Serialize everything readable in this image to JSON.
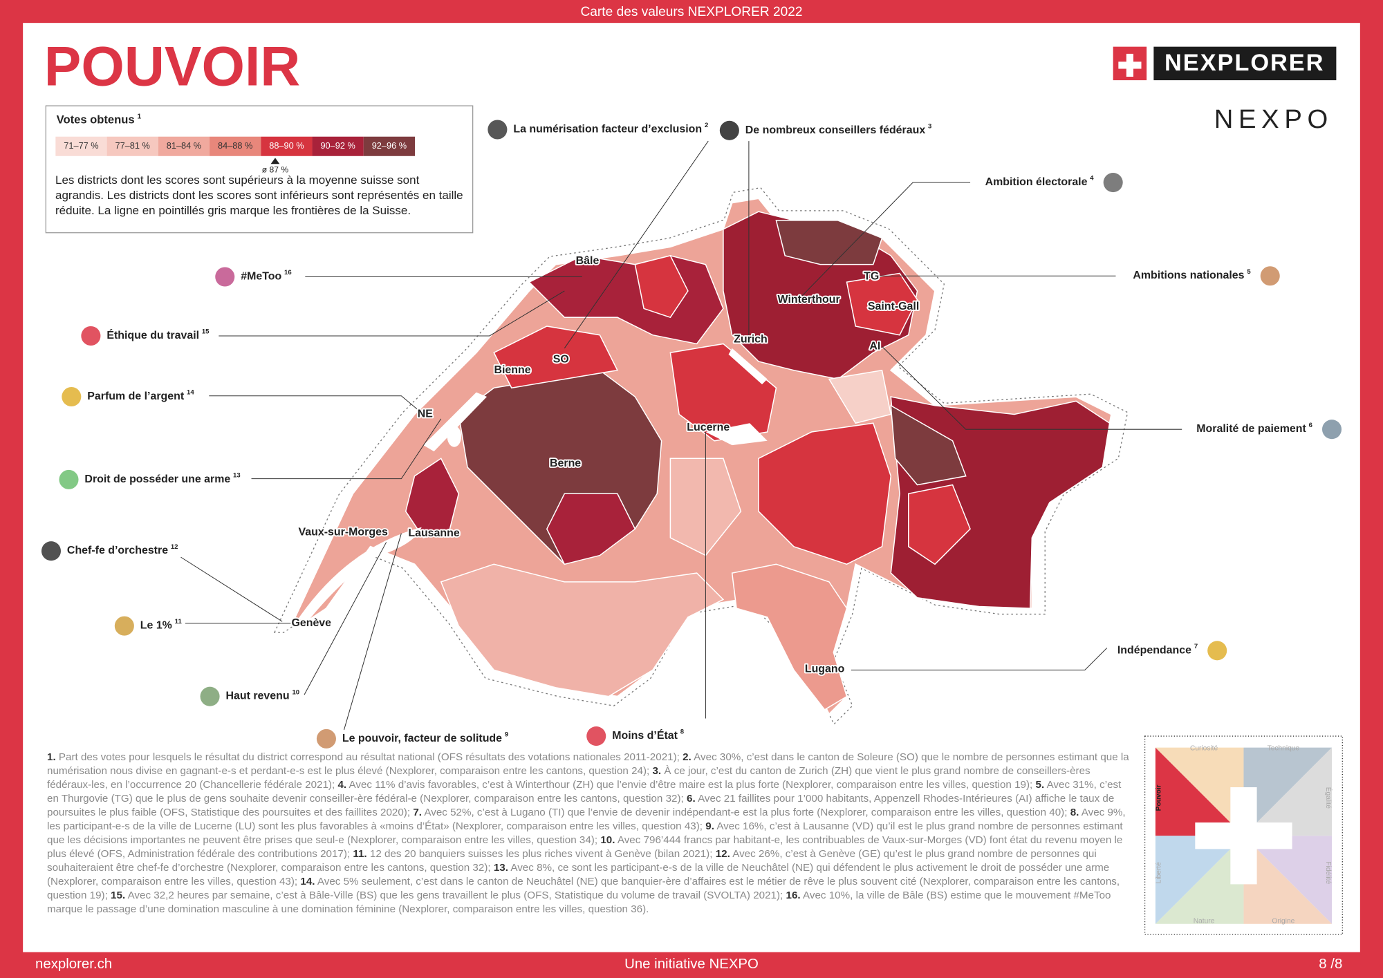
{
  "header": {
    "bar_title": "Carte des valeurs NEXPLORER 2022",
    "title": "POUVOIR",
    "brand": "NEXPLORER",
    "brand_secondary": "NEXPO"
  },
  "legend": {
    "title": "Votes obtenus",
    "title_note": "1",
    "bins": [
      {
        "label": "71–77 %",
        "color": "#f9dcd6"
      },
      {
        "label": "77–81 %",
        "color": "#f6c8bf"
      },
      {
        "label": "81–84 %",
        "color": "#f0a99e"
      },
      {
        "label": "84–88 %",
        "color": "#e8877b"
      },
      {
        "label": "88–90 %",
        "color": "#d6343f"
      },
      {
        "label": "90–92 %",
        "color": "#a8223a"
      },
      {
        "label": "92–96 %",
        "color": "#7d3b3e"
      }
    ],
    "average": "ø 87 %",
    "description": "Les districts dont les scores sont supérieurs à la moyenne suisse sont agrandis. Les districts dont les scores sont inférieurs sont représentés en taille réduite. La ligne en pointillés gris marque les frontières de la Suisse."
  },
  "callouts": [
    {
      "label": "La numérisation facteur d’exclusion",
      "note": "2"
    },
    {
      "label": "De nombreux conseillers fédéraux",
      "note": "3"
    },
    {
      "label": "Ambition électorale",
      "note": "4"
    },
    {
      "label": "Ambitions nationales",
      "note": "5"
    },
    {
      "label": "Moralité de paiement",
      "note": "6"
    },
    {
      "label": "Indépendance",
      "note": "7"
    },
    {
      "label": "Moins d’État",
      "note": "8"
    },
    {
      "label": "Le pouvoir, facteur de solitude",
      "note": "9"
    },
    {
      "label": "Haut revenu",
      "note": "10"
    },
    {
      "label": "Le 1%",
      "note": "11"
    },
    {
      "label": "Chef-fe d’orchestre",
      "note": "12"
    },
    {
      "label": "Droit de posséder une arme",
      "note": "13"
    },
    {
      "label": "Parfum de l’argent",
      "note": "14"
    },
    {
      "label": "Éthique du travail",
      "note": "15"
    },
    {
      "label": "#MeToo",
      "note": "16"
    }
  ],
  "places": [
    "Bâle",
    "SO",
    "Bienne",
    "NE",
    "Berne",
    "Lucerne",
    "Zurich",
    "Winterthour",
    "TG",
    "Saint-Gall",
    "AI",
    "Vaux-sur-Morges",
    "Lausanne",
    "Genève",
    "Lugano"
  ],
  "footnotes": [
    {
      "number": "1.",
      "text": "Part des votes pour lesquels le résultat du district correspond au résultat national (OFS résultats des votations nationales 2011-2021);"
    },
    {
      "number": "2.",
      "text": "Avec 30%, c’est dans le canton de Soleure (SO) que le nombre de personnes estimant que la numérisation nous divise en gagnant-e-s et perdant-e-s est le plus élevé (Nexplorer, comparaison entre les cantons, question 24);"
    },
    {
      "number": "3.",
      "text": "À ce jour, c’est du canton de Zurich (ZH) que vient le plus grand nombre de conseillers-ères fédéraux-les, en l’occurrence 20 (Chancellerie fédérale 2021);"
    },
    {
      "number": "4.",
      "text": "Avec 11% d’avis favorables, c’est à Winterthour (ZH) que l’envie d’être maire est la plus forte (Nexplorer, comparaison entre les villes, question 19);"
    },
    {
      "number": "5.",
      "text": "Avec 31%, c’est en Thurgovie (TG) que le plus de gens souhaite devenir conseiller-ère fédéral-e (Nexplorer, comparaison entre les cantons, question 32);"
    },
    {
      "number": "6.",
      "text": "Avec 21 faillites pour 1’000 habitants, Appenzell Rhodes-Intérieures (AI) affiche le taux de poursuites le plus faible (OFS, Statistique des poursuites et des faillites 2020);"
    },
    {
      "number": "7.",
      "text": "Avec 52%, c’est à Lugano (TI) que l’envie de devenir indépendant-e est la plus forte (Nexplorer, comparaison entre les villes, question 40);"
    },
    {
      "number": "8.",
      "text": "Avec 9%, les participant-e-s de la ville de Lucerne (LU) sont les plus favorables à «moins d’État» (Nexplorer, comparaison entre les villes, question 43);"
    },
    {
      "number": "9.",
      "text": "Avec 16%, c’est à Lausanne (VD) qu’il est le plus grand nombre de personnes estimant que les décisions importantes ne peuvent être prises que seul-e (Nexplorer, comparaison entre les villes, question 34);"
    },
    {
      "number": "10.",
      "text": "Avec 796’444 francs par habitant-e, les contribuables de Vaux-sur-Morges (VD) font état du revenu moyen le plus élevé (OFS, Administration fédérale des contributions 2017);"
    },
    {
      "number": "11.",
      "text": "12 des 20 banquiers suisses les plus riches vivent à Genève (bilan 2021);"
    },
    {
      "number": "12.",
      "text": "Avec 26%, c’est à Genève (GE) qu’est le plus grand nombre de personnes qui souhaiteraient être chef-fe d’orchestre (Nexplorer, comparaison entre les cantons, question 32);"
    },
    {
      "number": "13.",
      "text": "Avec 8%, ce sont les participant-e-s de la ville de Neuchâtel (NE) qui défendent le plus activement le droit de posséder une arme (Nexplorer, comparaison entre les villes, question 43);"
    },
    {
      "number": "14.",
      "text": "Avec 5% seulement, c’est dans le canton de Neuchâtel (NE) que banquier-ère d’affaires est le métier de rêve le plus souvent cité (Nexplorer, comparaison entre les cantons, question 19);"
    },
    {
      "number": "15.",
      "text": "Avec 32,2 heures par semaine, c’est à Bâle-Ville (BS) que les gens travaillent le plus (OFS, Statistique du volume de travail (SVOLTA) 2021);"
    },
    {
      "number": "16.",
      "text": "Avec 10%, la ville de Bâle (BS) estime que le mouvement #MeToo marque le passage d’une domination masculine à une domination féminine (Nexplorer, comparaison entre les villes, question 36)."
    }
  ],
  "value_wheel": {
    "labels": [
      "Curiosité",
      "Technique",
      "Égalité",
      "Fidélité",
      "Origine",
      "Nature",
      "Liberté",
      "Pouvoir"
    ]
  },
  "footer": {
    "website": "nexplorer.ch",
    "initiative": "Une initiative NEXPO",
    "page": "8 /8"
  }
}
